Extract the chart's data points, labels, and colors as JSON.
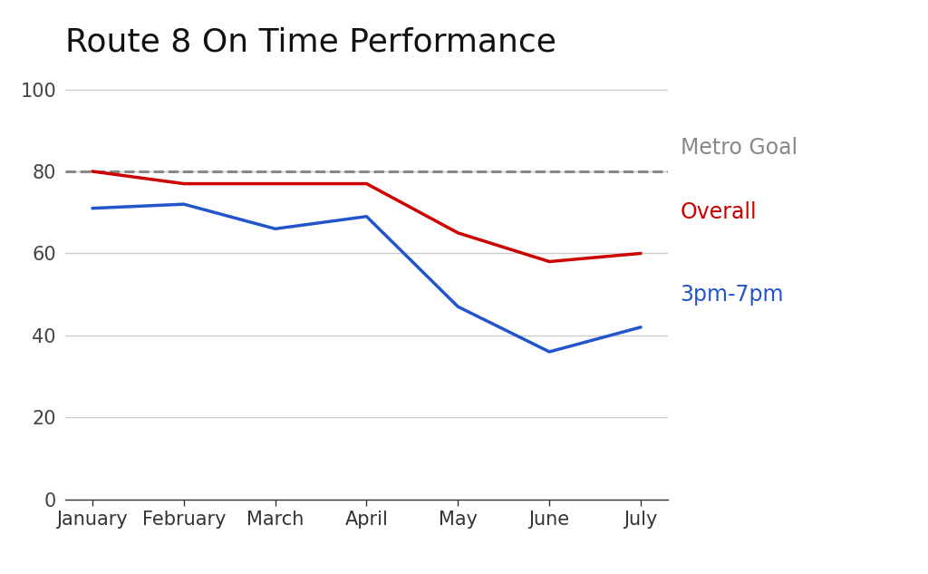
{
  "title": "Route 8 On Time Performance",
  "months": [
    "January",
    "February",
    "March",
    "April",
    "May",
    "June",
    "July"
  ],
  "overall": [
    80,
    77,
    77,
    77,
    65,
    58,
    60
  ],
  "pm_peak": [
    71,
    72,
    66,
    69,
    47,
    36,
    42
  ],
  "metro_goal": 80,
  "ylim": [
    0,
    105
  ],
  "yticks": [
    0,
    20,
    40,
    60,
    80,
    100
  ],
  "overall_color": "#cc0000",
  "pm_peak_color": "#2255cc",
  "goal_color": "#888888",
  "title_fontsize": 26,
  "tick_fontsize": 15,
  "annotation_fontsize": 17,
  "background_color": "#ffffff",
  "grid_color": "#cccccc",
  "overall_label": "Overall",
  "pm_peak_label": "3pm-7pm",
  "goal_label": "Metro Goal"
}
